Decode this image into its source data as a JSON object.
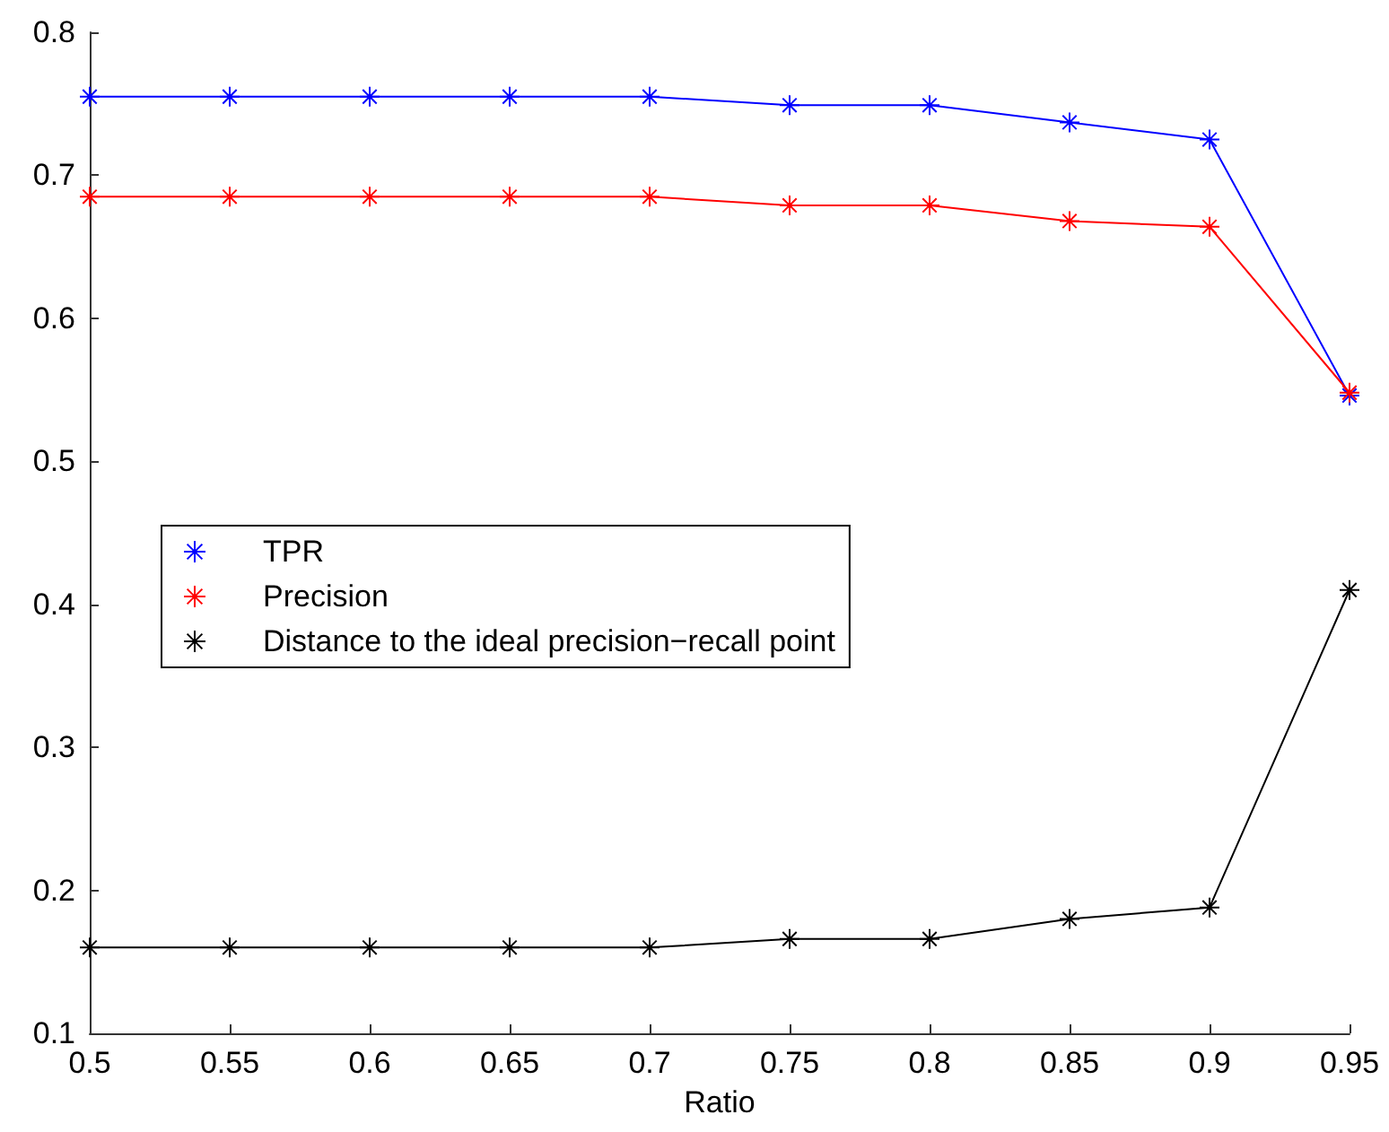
{
  "chart_data": {
    "type": "line",
    "xlabel": "Ratio",
    "x": [
      0.5,
      0.55,
      0.6,
      0.65,
      0.7,
      0.75,
      0.8,
      0.85,
      0.9,
      0.95
    ],
    "series": [
      {
        "name": "TPR",
        "color": "#0000ff",
        "values": [
          0.755,
          0.755,
          0.755,
          0.755,
          0.755,
          0.749,
          0.749,
          0.737,
          0.725,
          0.546
        ]
      },
      {
        "name": "Precision",
        "color": "#ff0000",
        "values": [
          0.685,
          0.685,
          0.685,
          0.685,
          0.685,
          0.679,
          0.679,
          0.668,
          0.664,
          0.548
        ]
      },
      {
        "name": "Distance to the ideal precision−recall point",
        "color": "#000000",
        "values": [
          0.16,
          0.16,
          0.16,
          0.16,
          0.16,
          0.166,
          0.166,
          0.18,
          0.188,
          0.41
        ]
      }
    ],
    "xlim": [
      0.5,
      0.95
    ],
    "xticks": [
      0.5,
      0.55,
      0.6,
      0.65,
      0.7,
      0.75,
      0.8,
      0.85,
      0.9,
      0.95
    ],
    "ylim": [
      0.1,
      0.8
    ],
    "yticks": [
      0.1,
      0.2,
      0.3,
      0.4,
      0.5,
      0.6,
      0.7,
      0.8
    ],
    "grid": false,
    "legend": "left",
    "marker": "cross",
    "line_style": "solid"
  }
}
